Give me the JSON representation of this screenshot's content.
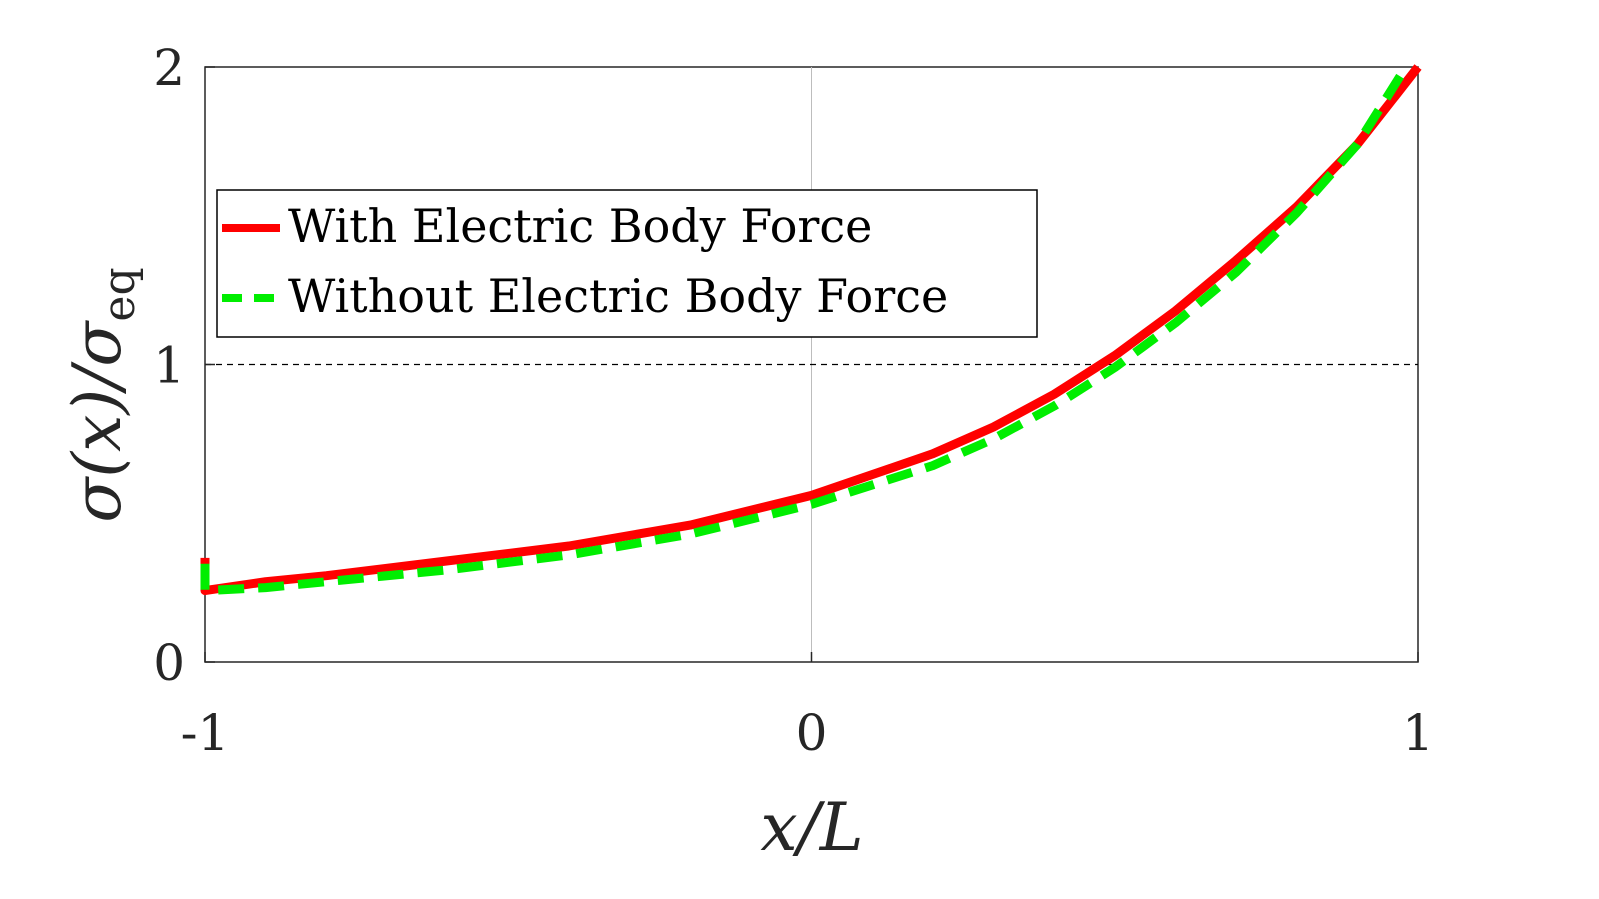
{
  "chart_data": {
    "type": "line",
    "title": "",
    "xlabel": "x/L",
    "ylabel": {
      "main": "σ(x)/σ",
      "subscript": "eq"
    },
    "xlim": [
      -1,
      1
    ],
    "ylim": [
      0,
      2
    ],
    "xticks": [
      "-1",
      "0",
      "1"
    ],
    "yticks": [
      "0",
      "1",
      "2"
    ],
    "grid": false,
    "reference_lines": {
      "horizontal_y": 1,
      "vertical_x": 0
    },
    "legend": {
      "placement": "upper-left"
    },
    "series": [
      {
        "name": "With Electric Body Force",
        "color": "#ff0000",
        "style": "solid",
        "x": [
          -1,
          -1,
          -0.9,
          -0.8,
          -0.6,
          -0.4,
          -0.2,
          0,
          0.2,
          0.3,
          0.4,
          0.5,
          0.6,
          0.7,
          0.8,
          0.9,
          1
        ],
        "y": [
          0.35,
          0.24,
          0.27,
          0.29,
          0.34,
          0.39,
          0.46,
          0.56,
          0.7,
          0.79,
          0.9,
          1.03,
          1.18,
          1.35,
          1.53,
          1.74,
          2.0
        ]
      },
      {
        "name": "Without Electric Body Force",
        "color": "#00ee00",
        "style": "dashed",
        "x": [
          -1,
          -1,
          -0.9,
          -0.8,
          -0.6,
          -0.4,
          -0.2,
          0,
          0.2,
          0.3,
          0.4,
          0.5,
          0.6,
          0.7,
          0.8,
          0.9,
          0.98
        ],
        "y": [
          0.33,
          0.24,
          0.25,
          0.27,
          0.31,
          0.36,
          0.43,
          0.53,
          0.66,
          0.75,
          0.86,
          0.99,
          1.14,
          1.31,
          1.51,
          1.74,
          2.0
        ]
      }
    ]
  }
}
